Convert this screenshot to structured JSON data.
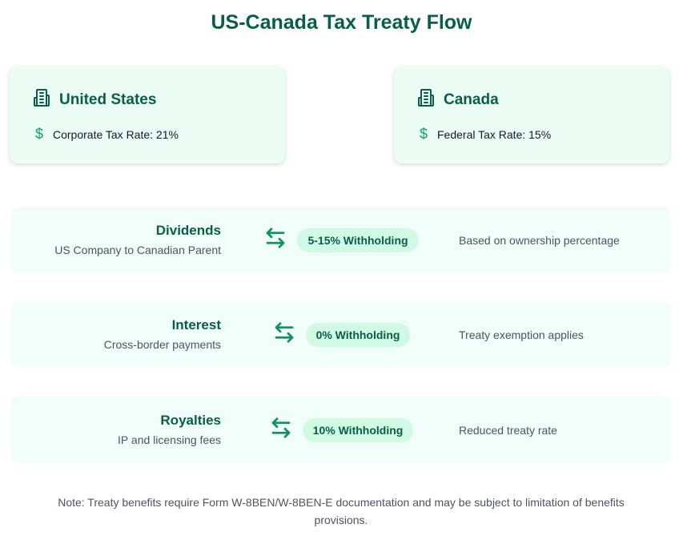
{
  "title": "US-Canada Tax Treaty Flow",
  "colors": {
    "primary": "#065f46",
    "accent": "#10a16b",
    "badge_bg": "#d1fae5",
    "card_bg": "#ecfdf5"
  },
  "countries": [
    {
      "name": "United States",
      "icon": "building-icon",
      "rate": "Corporate Tax Rate: 21%"
    },
    {
      "name": "Canada",
      "icon": "building-icon",
      "rate": "Federal Tax Rate: 15%"
    }
  ],
  "flows": [
    {
      "name": "Dividends",
      "sub": "US Company to Canadian Parent",
      "badge": "5-15% Withholding",
      "desc": "Based on ownership percentage"
    },
    {
      "name": "Interest",
      "sub": "Cross-border payments",
      "badge": "0% Withholding",
      "desc": "Treaty exemption applies"
    },
    {
      "name": "Royalties",
      "sub": "IP and licensing fees",
      "badge": "10% Withholding",
      "desc": "Reduced treaty rate"
    }
  ],
  "note": "Note: Treaty benefits require Form W-8BEN/W-8BEN-E documentation and may be subject to limitation of benefits provisions."
}
